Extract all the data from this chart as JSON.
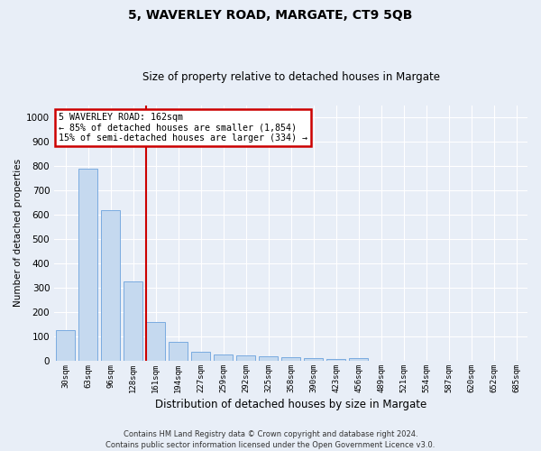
{
  "title1": "5, WAVERLEY ROAD, MARGATE, CT9 5QB",
  "title2": "Size of property relative to detached houses in Margate",
  "xlabel": "Distribution of detached houses by size in Margate",
  "ylabel": "Number of detached properties",
  "categories": [
    "30sqm",
    "63sqm",
    "96sqm",
    "128sqm",
    "161sqm",
    "194sqm",
    "227sqm",
    "259sqm",
    "292sqm",
    "325sqm",
    "358sqm",
    "390sqm",
    "423sqm",
    "456sqm",
    "489sqm",
    "521sqm",
    "554sqm",
    "587sqm",
    "620sqm",
    "652sqm",
    "685sqm"
  ],
  "values": [
    125,
    790,
    620,
    325,
    160,
    78,
    38,
    25,
    22,
    20,
    15,
    10,
    8,
    10,
    0,
    0,
    0,
    0,
    0,
    0,
    0
  ],
  "bar_color": "#c5d9ef",
  "bar_edge_color": "#7aabe0",
  "marker_bar_index": 4,
  "ylim": [
    0,
    1050
  ],
  "yticks": [
    0,
    100,
    200,
    300,
    400,
    500,
    600,
    700,
    800,
    900,
    1000
  ],
  "vline_color": "#cc0000",
  "annotation_text": "5 WAVERLEY ROAD: 162sqm\n← 85% of detached houses are smaller (1,854)\n15% of semi-detached houses are larger (334) →",
  "annotation_box_color": "#ffffff",
  "annotation_border_color": "#cc0000",
  "footer1": "Contains HM Land Registry data © Crown copyright and database right 2024.",
  "footer2": "Contains public sector information licensed under the Open Government Licence v3.0.",
  "bg_color": "#e8eef7",
  "plot_bg_color": "#e8eef7",
  "grid_color": "#ffffff"
}
